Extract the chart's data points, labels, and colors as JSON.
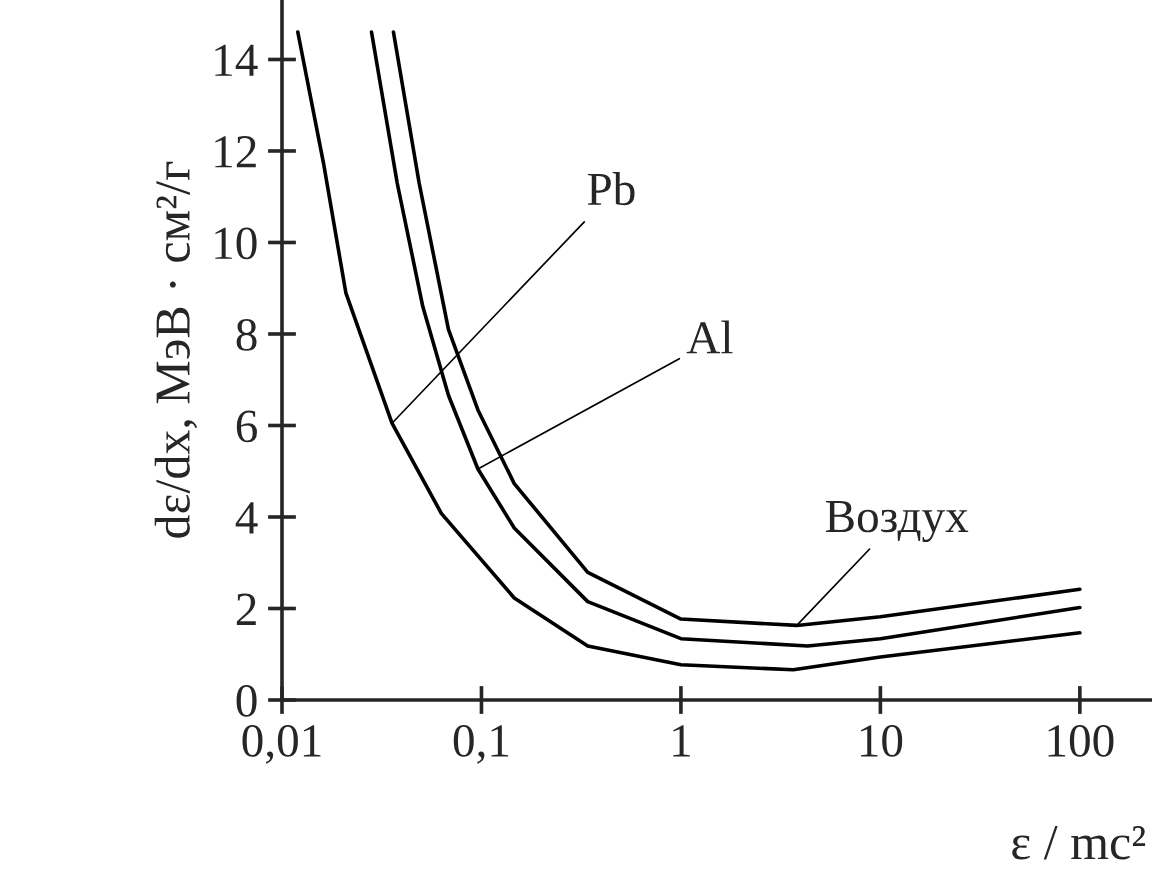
{
  "chart_data": {
    "type": "line",
    "xlabel": "ε / mc²",
    "ylabel": "dε/dx, МэВ · см²/г",
    "log": "x",
    "xlim": [
      0.01,
      230
    ],
    "ylim": [
      0,
      15.3
    ],
    "xticks": [
      {
        "value": 0.01,
        "label": "0,01"
      },
      {
        "value": 0.1,
        "label": "0,1"
      },
      1,
      10,
      100
    ],
    "yticks": [
      0,
      2,
      4,
      6,
      8,
      10,
      12,
      14
    ],
    "annotations": [
      {
        "text": "Pb",
        "x": 0.0356,
        "y": 6.05
      },
      {
        "text": "Al",
        "x": 0.096,
        "y": 5.05
      },
      {
        "text": "Воздух",
        "x": 3.81,
        "y": 1.63
      }
    ],
    "grid": false,
    "legend": false,
    "marker": "none",
    "line_style": "solid",
    "series": [
      {
        "color": "#000000",
        "x": [
          0.012,
          0.0162,
          0.0209,
          0.0356,
          0.0629,
          0.146,
          0.341,
          1,
          3.66,
          10,
          100
        ],
        "values": [
          14.6,
          11.7,
          8.9,
          6.05,
          4.08,
          2.23,
          1.18,
          0.77,
          0.66,
          0.94,
          1.47
        ]
      },
      {
        "color": "#000000",
        "x": [
          0.0281,
          0.0378,
          0.0508,
          0.0683,
          0.096,
          0.146,
          0.341,
          1,
          4.32,
          10,
          100
        ],
        "values": [
          14.6,
          11.3,
          8.6,
          6.66,
          5.05,
          3.76,
          2.15,
          1.34,
          1.18,
          1.34,
          2.02
        ]
      },
      {
        "color": "#000000",
        "x": [
          0.0362,
          0.0487,
          0.0683,
          0.096,
          0.146,
          0.341,
          1,
          3.81,
          10,
          100
        ],
        "values": [
          14.6,
          11.3,
          8.1,
          6.34,
          4.73,
          2.79,
          1.77,
          1.63,
          1.82,
          2.42
        ]
      }
    ]
  }
}
